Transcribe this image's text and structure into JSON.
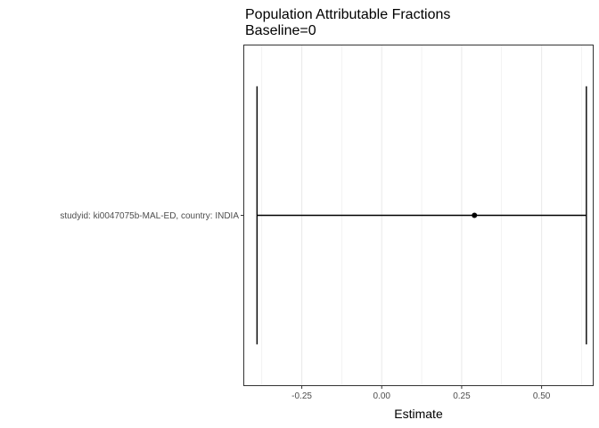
{
  "chart_data": {
    "type": "forest",
    "title": "Population Attributable Fractions",
    "subtitle": "Baseline=0",
    "xlabel": "Estimate",
    "ylabel": "",
    "xlim": [
      -0.43,
      0.66
    ],
    "x_ticks": [
      -0.25,
      0.0,
      0.25,
      0.5
    ],
    "x_tick_labels": [
      "-0.25",
      "0.00",
      "0.25",
      "0.50"
    ],
    "grid": true,
    "categories": [
      "studyid: ki0047075b-MAL-ED, country: INDIA"
    ],
    "estimates": [
      {
        "label": "studyid: ki0047075b-MAL-ED, country: INDIA",
        "estimate": 0.29,
        "lower": -0.39,
        "upper": 0.64
      }
    ],
    "colors": {
      "panel_border": "#333333",
      "grid": "#ebebeb",
      "errorbar": "#000000",
      "point": "#000000"
    }
  }
}
